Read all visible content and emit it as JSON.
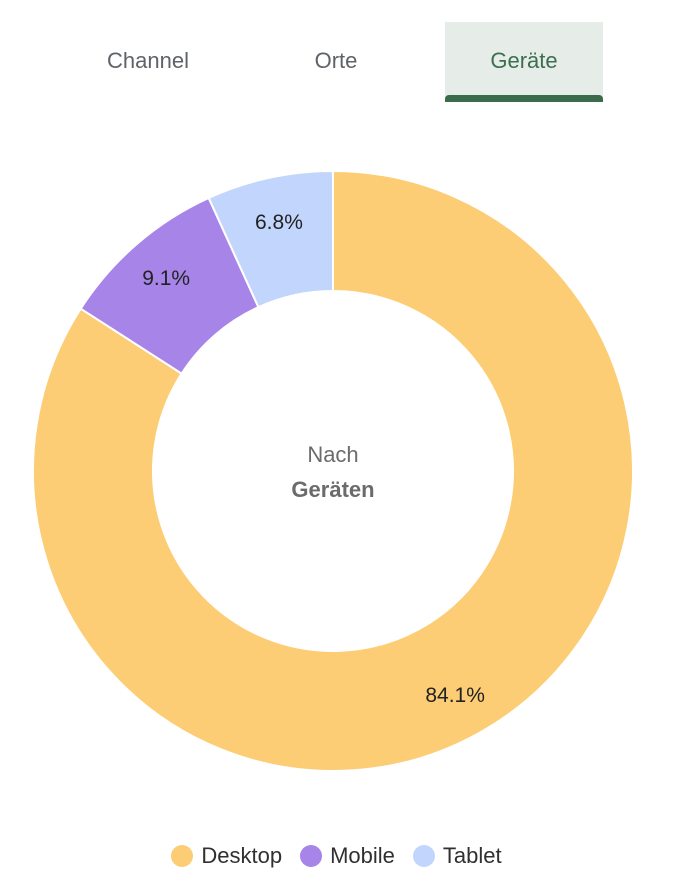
{
  "tabs": [
    {
      "label": "Channel",
      "active": false
    },
    {
      "label": "Orte",
      "active": false
    },
    {
      "label": "Geräte",
      "active": true
    }
  ],
  "center_label": {
    "line1": "Nach",
    "line2": "Geräten"
  },
  "chart_data": {
    "type": "pie",
    "variant": "donut",
    "categories": [
      "Desktop",
      "Mobile",
      "Tablet"
    ],
    "values": [
      84.1,
      9.1,
      6.8
    ],
    "value_labels": [
      "84.1%",
      "9.1%",
      "6.8%"
    ],
    "colors": [
      "#fccd74",
      "#a784e8",
      "#c2d5fc"
    ],
    "legend": {
      "position": "bottom"
    }
  }
}
